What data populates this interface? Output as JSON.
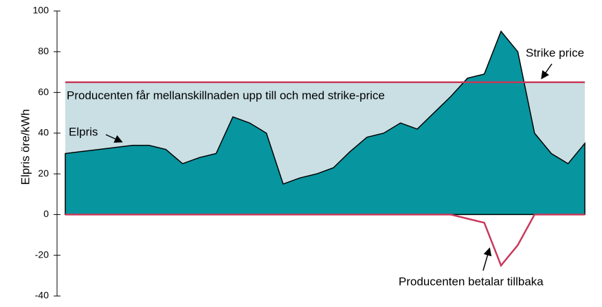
{
  "chart_data": {
    "type": "area",
    "y_label": "Elpris öre/kWh",
    "categories": [
      null,
      null,
      null,
      null,
      null,
      null,
      null,
      null,
      null,
      null,
      null,
      null,
      null,
      null,
      null,
      null,
      null,
      null,
      null,
      null,
      null,
      null,
      null,
      null,
      null,
      null,
      null,
      null,
      null,
      null,
      null,
      null
    ],
    "series": [
      {
        "name": "Elpris",
        "color": "#07959f",
        "values": [
          30,
          31,
          32,
          33,
          34,
          34,
          32,
          25,
          28,
          30,
          48,
          45,
          40,
          15,
          18,
          20,
          23,
          31,
          38,
          40,
          45,
          42,
          50,
          58,
          67,
          69,
          90,
          80,
          40,
          30,
          25,
          35
        ]
      },
      {
        "name": "Producenten betalar tillbaka",
        "color": "#c8385a",
        "values": [
          0,
          0,
          0,
          0,
          0,
          0,
          0,
          0,
          0,
          0,
          0,
          0,
          0,
          0,
          0,
          0,
          0,
          0,
          0,
          0,
          0,
          0,
          0,
          0,
          -2,
          -4,
          -25,
          -15,
          0,
          0,
          0,
          0
        ]
      }
    ],
    "strike_price": 65,
    "strike_label": "Strike price",
    "band_label": "Producenten får mellanskillnaden upp till och med strike-price",
    "band_color": "#c9dfe4",
    "ylim": [
      -40,
      100
    ],
    "yticks": [
      -40,
      -20,
      0,
      20,
      40,
      60,
      80,
      100
    ]
  }
}
